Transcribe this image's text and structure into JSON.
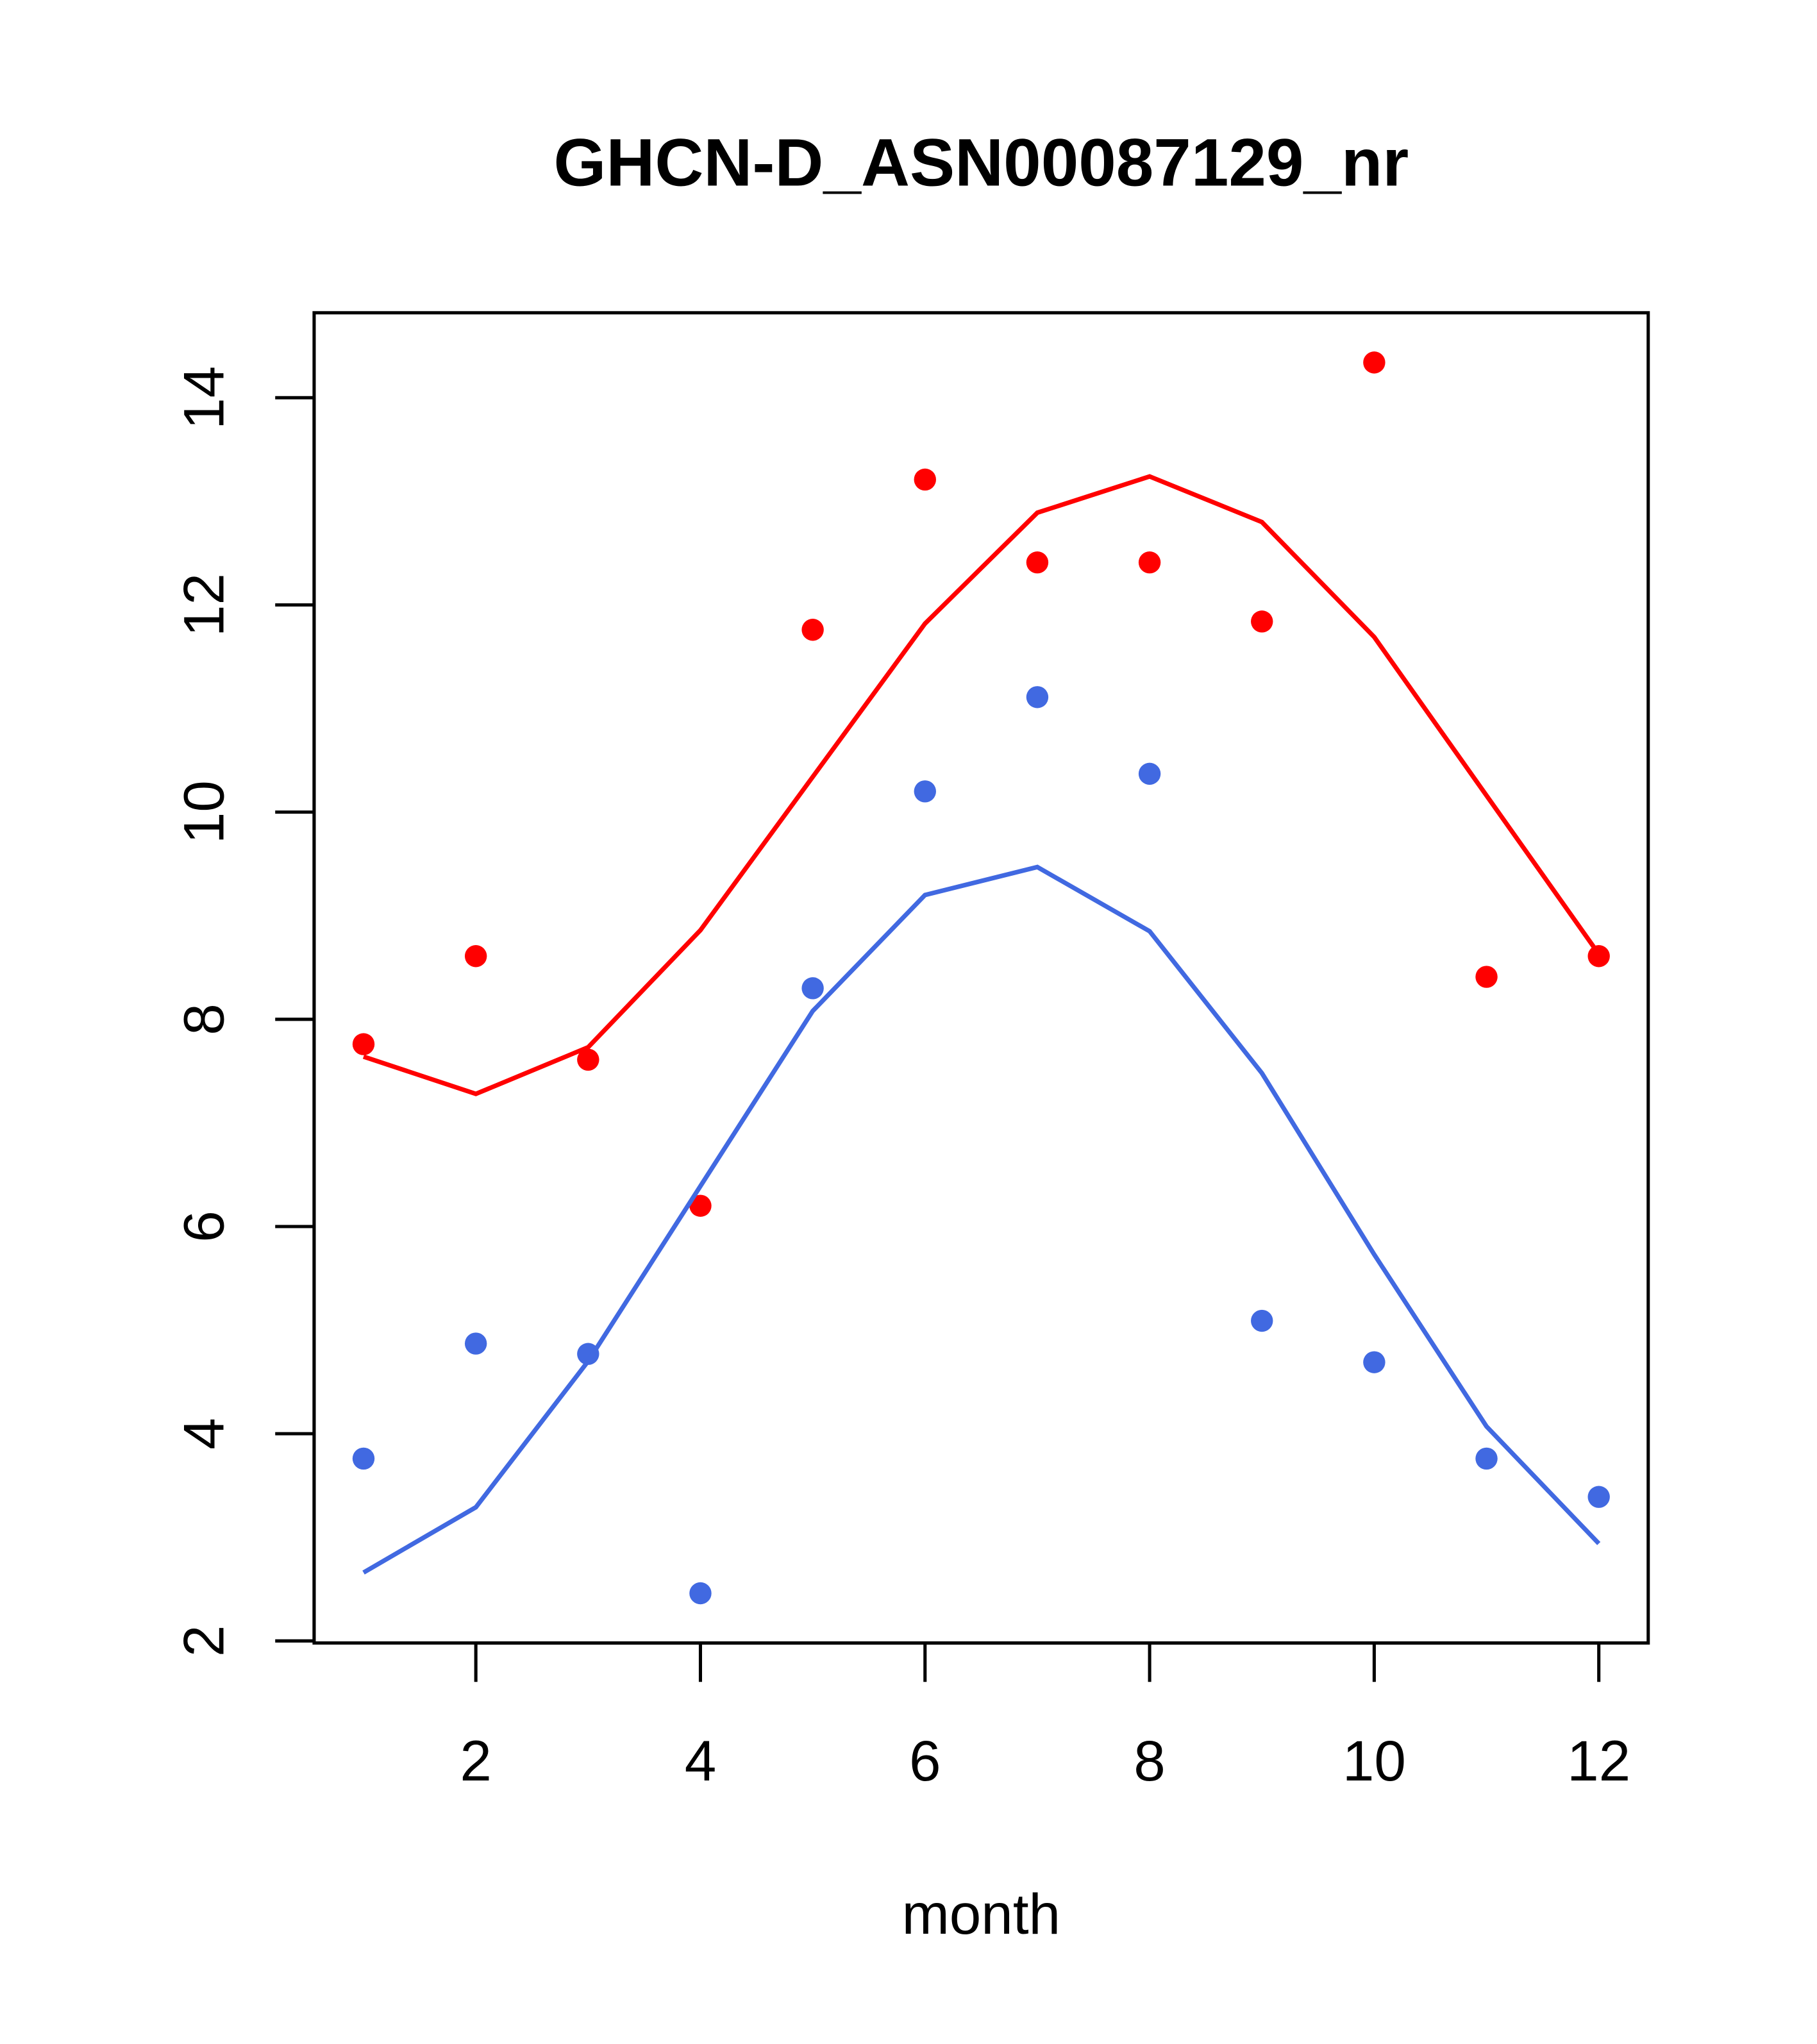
{
  "chart_data": {
    "type": "scatter",
    "title": "GHCN-D_ASN00087129_nr",
    "xlabel": "month",
    "ylabel": "",
    "xlim": [
      0.56,
      12.44
    ],
    "ylim": [
      1.98,
      14.82
    ],
    "x": [
      1,
      2,
      3,
      4,
      5,
      6,
      7,
      8,
      9,
      10,
      11,
      12
    ],
    "xticks": [
      "2",
      "4",
      "6",
      "8",
      "10",
      "12"
    ],
    "xtick_values": [
      2,
      4,
      6,
      8,
      10,
      12
    ],
    "yticks": [
      "2",
      "4",
      "6",
      "8",
      "10",
      "12",
      "14"
    ],
    "ytick_values": [
      2,
      4,
      6,
      8,
      10,
      12,
      14
    ],
    "grid": false,
    "series": [
      {
        "name": "red-points",
        "kind": "points",
        "color": "#ff0000",
        "values": [
          7.76,
          8.61,
          7.61,
          6.2,
          11.76,
          13.21,
          12.41,
          12.41,
          11.84,
          14.34,
          8.41,
          8.61
        ]
      },
      {
        "name": "red-line",
        "kind": "line",
        "color": "#ff0000",
        "values": [
          7.64,
          7.28,
          7.73,
          8.86,
          10.34,
          11.82,
          12.89,
          13.24,
          12.8,
          11.69,
          10.16,
          8.63
        ]
      },
      {
        "name": "blue-points",
        "kind": "points",
        "color": "#4169e1",
        "values": [
          3.76,
          4.87,
          4.77,
          2.46,
          8.3,
          10.2,
          11.11,
          10.37,
          5.09,
          4.69,
          3.76,
          3.39
        ]
      },
      {
        "name": "blue-line",
        "kind": "line",
        "color": "#4169e1",
        "values": [
          2.66,
          3.29,
          4.7,
          6.39,
          8.08,
          9.2,
          9.47,
          8.85,
          7.48,
          5.73,
          4.07,
          2.94
        ]
      }
    ]
  }
}
